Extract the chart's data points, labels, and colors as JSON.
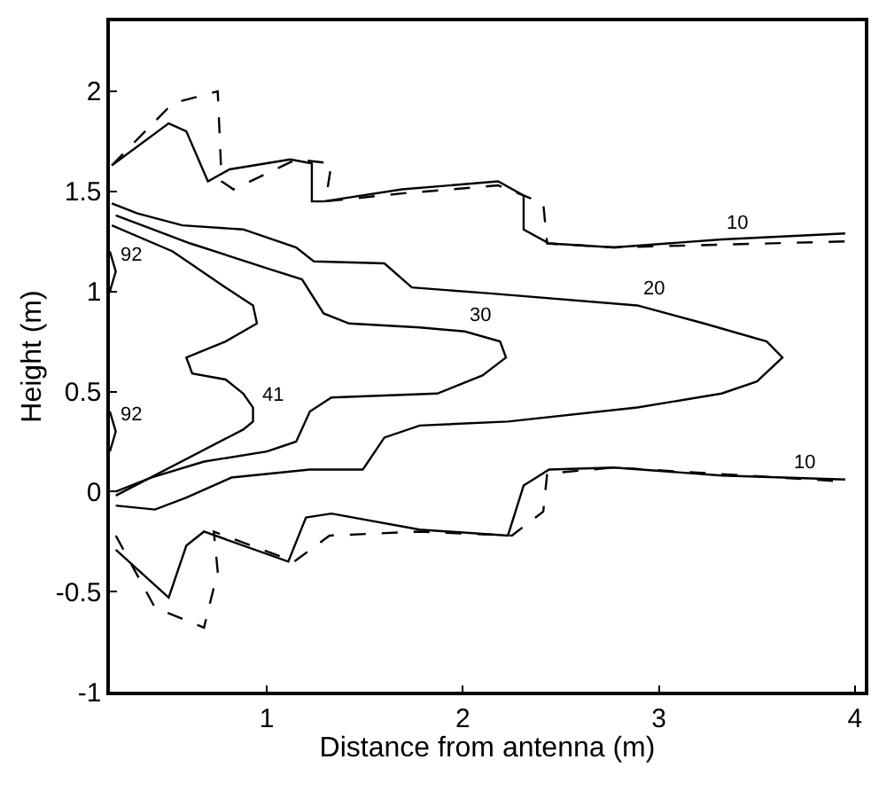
{
  "chart_data": {
    "type": "line",
    "xlabel": "Distance from antenna (m)",
    "ylabel": "Height (m)",
    "xlim": [
      0.2,
      4.05
    ],
    "ylim": [
      -1,
      2.35
    ],
    "xticks": [
      1,
      2,
      3,
      4
    ],
    "yticks": [
      -1,
      -0.5,
      0,
      0.5,
      1,
      1.5,
      2
    ],
    "marker": "none",
    "series": [
      {
        "color": "#000000",
        "line_style": "solid",
        "x": [
          0.21,
          0.5,
          0.59,
          0.7,
          0.81,
          1.12,
          1.23,
          1.23,
          1.29,
          1.69,
          2.18,
          2.31,
          2.31,
          2.44,
          2.77,
          3.32,
          3.95
        ],
        "values": [
          1.63,
          1.84,
          1.8,
          1.55,
          1.61,
          1.66,
          1.64,
          1.45,
          1.45,
          1.51,
          1.55,
          1.48,
          1.31,
          1.24,
          1.22,
          1.26,
          1.29
        ]
      },
      {
        "color": "#000000",
        "line_style": "solid",
        "x": [
          0.23,
          0.5,
          0.59,
          0.68,
          1.11,
          1.2,
          1.33,
          1.78,
          2.23,
          2.31,
          2.44,
          2.77,
          3.32,
          3.95
        ],
        "values": [
          -0.29,
          -0.53,
          -0.27,
          -0.2,
          -0.35,
          -0.13,
          -0.11,
          -0.19,
          -0.22,
          0.03,
          0.11,
          0.12,
          0.08,
          0.06
        ]
      },
      {
        "color": "#000000",
        "line_style": "dashed",
        "x": [
          0.21,
          0.52,
          0.75,
          0.77,
          0.83,
          1.15,
          1.33,
          1.3,
          1.69,
          2.18,
          2.41,
          2.43,
          2.77,
          3.95
        ],
        "values": [
          1.63,
          1.94,
          2.0,
          1.55,
          1.51,
          1.66,
          1.64,
          1.45,
          1.49,
          1.53,
          1.44,
          1.24,
          1.22,
          1.25
        ]
      },
      {
        "color": "#000000",
        "line_style": "dashed",
        "x": [
          0.23,
          0.43,
          0.68,
          0.75,
          0.73,
          1.14,
          1.32,
          1.78,
          2.25,
          2.41,
          2.43,
          2.77,
          3.95
        ],
        "values": [
          -0.22,
          -0.58,
          -0.68,
          -0.4,
          -0.2,
          -0.35,
          -0.22,
          -0.2,
          -0.22,
          -0.1,
          0.09,
          0.12,
          0.05
        ]
      },
      {
        "color": "#000000",
        "line_style": "solid",
        "x": [
          0.21,
          0.34,
          0.57,
          0.88,
          1.15,
          1.24,
          1.6,
          1.74,
          2.14,
          2.89,
          3.23,
          3.55,
          3.63,
          3.5,
          3.32,
          2.89,
          2.23,
          1.78,
          1.6,
          1.49,
          1.22,
          0.82,
          0.59,
          0.43,
          0.23
        ],
        "values": [
          1.44,
          1.39,
          1.33,
          1.31,
          1.22,
          1.15,
          1.14,
          1.02,
          0.99,
          0.93,
          0.84,
          0.75,
          0.67,
          0.55,
          0.49,
          0.42,
          0.35,
          0.33,
          0.27,
          0.11,
          0.11,
          0.07,
          -0.03,
          -0.09,
          -0.07
        ]
      },
      {
        "color": "#000000",
        "line_style": "solid",
        "x": [
          0.23,
          0.61,
          1.02,
          1.18,
          1.29,
          1.42,
          1.78,
          2.01,
          2.19,
          2.22,
          2.1,
          1.87,
          1.33,
          1.22,
          1.15,
          1.0,
          0.68,
          0.41,
          0.23
        ],
        "values": [
          1.38,
          1.24,
          1.11,
          1.06,
          0.89,
          0.84,
          0.82,
          0.8,
          0.75,
          0.67,
          0.58,
          0.49,
          0.47,
          0.4,
          0.25,
          0.2,
          0.15,
          0.07,
          0.0
        ]
      },
      {
        "color": "#000000",
        "line_style": "solid",
        "x": [
          0.2,
          0.23,
          0.2
        ],
        "values": [
          1.0,
          1.1,
          1.2
        ]
      },
      {
        "color": "#000000",
        "line_style": "solid",
        "x": [
          0.2,
          0.23,
          0.2
        ],
        "values": [
          0.2,
          0.3,
          0.4
        ]
      },
      {
        "color": "#000000",
        "line_style": "solid",
        "x": [
          0.21,
          0.52,
          0.79,
          0.93,
          0.95,
          0.79,
          0.59,
          0.62,
          0.79,
          0.88,
          0.93,
          0.93,
          0.88,
          0.23
        ],
        "values": [
          1.33,
          1.2,
          1.02,
          0.93,
          0.84,
          0.75,
          0.67,
          0.59,
          0.56,
          0.49,
          0.42,
          0.35,
          0.31,
          -0.02
        ]
      }
    ],
    "annotations": [
      {
        "text": "10",
        "x": 3.32,
        "y": 1.26
      },
      {
        "text": "20",
        "x": 2.89,
        "y": 0.93
      },
      {
        "text": "30",
        "x": 2.01,
        "y": 0.8
      },
      {
        "text": "41",
        "x": 0.95,
        "y": 0.4
      },
      {
        "text": "92",
        "x": 0.23,
        "y": 1.1
      },
      {
        "text": "92",
        "x": 0.23,
        "y": 0.3
      },
      {
        "text": "10",
        "x": 3.66,
        "y": 0.06
      }
    ]
  }
}
